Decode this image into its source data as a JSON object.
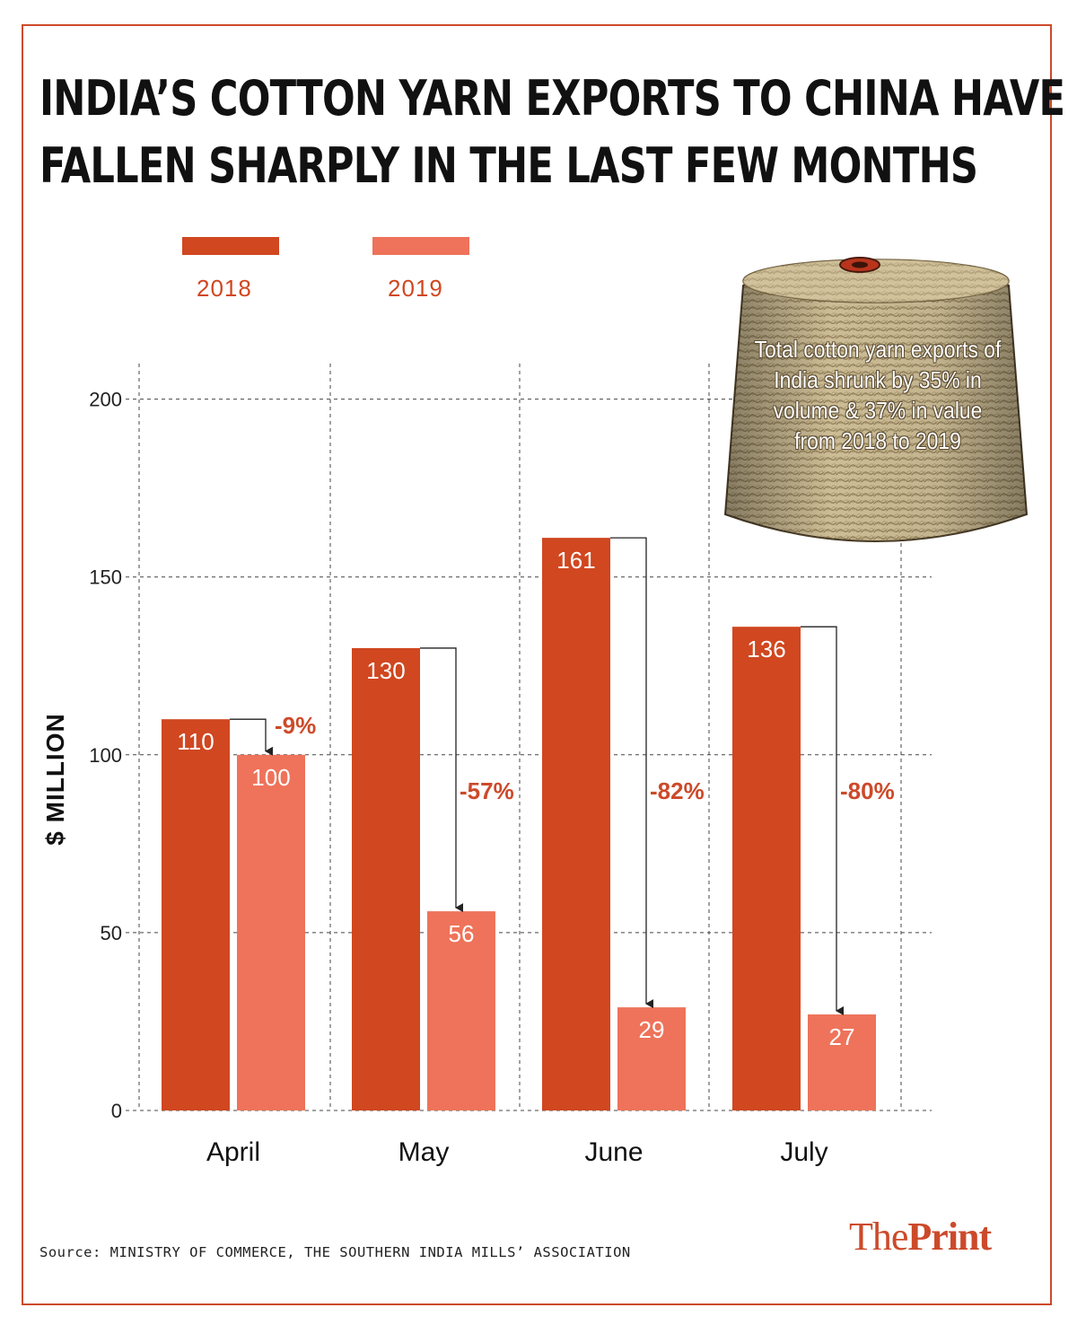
{
  "title_lines": [
    "INDIA’S COTTON YARN EXPORTS TO CHINA HAVE",
    "FALLEN SHARPLY IN THE LAST FEW MONTHS"
  ],
  "legend": [
    {
      "label": "2018",
      "color": "#d04720"
    },
    {
      "label": "2019",
      "color": "#ee735a"
    }
  ],
  "annotation": "Total cotton yarn exports of India shrunk by 35% in volume & 37% in value from 2018 to 2019",
  "source": "Source: MINISTRY OF COMMERCE, THE SOUTHERN INDIA MILLS’ ASSOCIATION",
  "logo": {
    "part1": "The",
    "part2": "Print"
  },
  "colors": {
    "accent": "#cc4a2a",
    "bar_2018": "#d04720",
    "bar_2019": "#ee735a",
    "label_pct": "#cc4a2a"
  },
  "chart_data": {
    "type": "bar",
    "title": "INDIA’S COTTON YARN EXPORTS TO CHINA HAVE FALLEN SHARPLY IN THE LAST FEW MONTHS",
    "xlabel": "",
    "ylabel": "$ MILLION",
    "ylim": [
      0,
      200
    ],
    "yticks": [
      0,
      50,
      100,
      150,
      200
    ],
    "grid": true,
    "legend_position": "top-left",
    "categories": [
      "April",
      "May",
      "June",
      "July"
    ],
    "series": [
      {
        "name": "2018",
        "values": [
          110,
          130,
          161,
          136
        ]
      },
      {
        "name": "2019",
        "values": [
          100,
          56,
          29,
          27
        ]
      }
    ],
    "change_labels": [
      "-9%",
      "-57%",
      "-82%",
      "-80%"
    ]
  }
}
